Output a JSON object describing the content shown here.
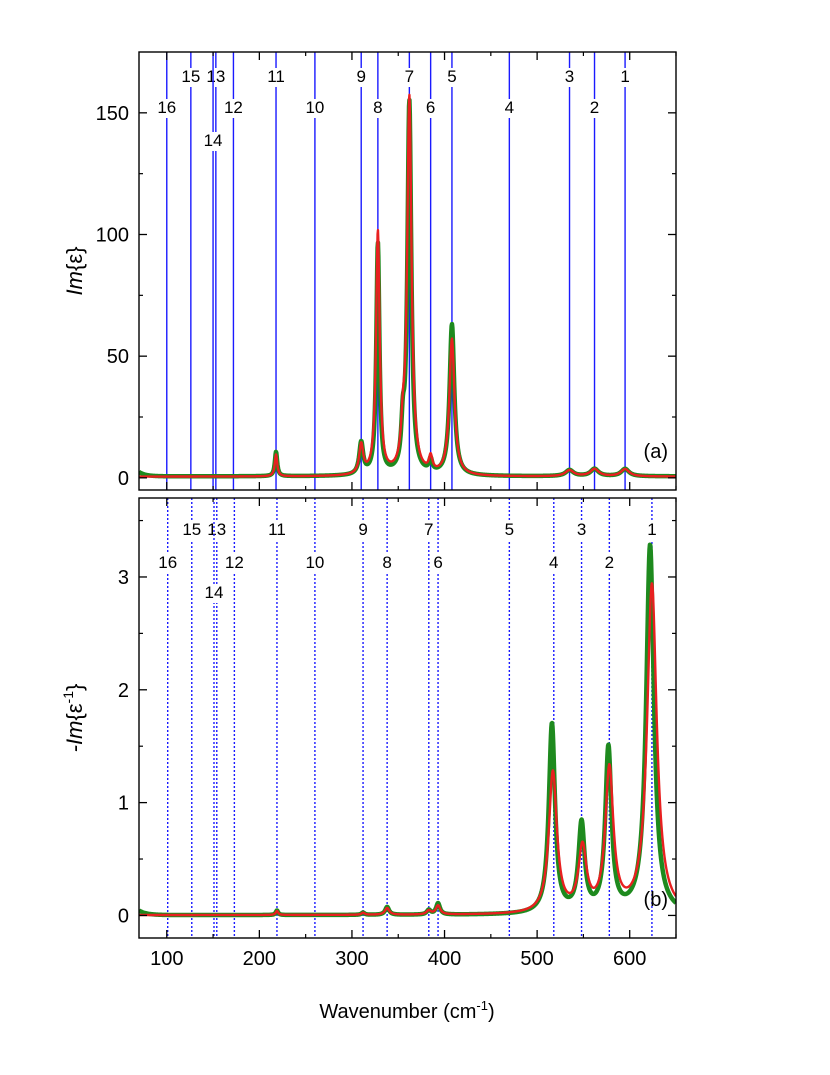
{
  "chart_data": [
    {
      "id": "a",
      "type": "line",
      "panel_label": "(a)",
      "ylabel_prefix": "Im",
      "ylabel_body": "{ε}",
      "xlim": [
        70,
        650
      ],
      "ylim": [
        -5,
        175
      ],
      "yticks": [
        0,
        50,
        100,
        150
      ],
      "yticks_minor": [
        25,
        75,
        125
      ],
      "mode_lines": {
        "style": "solid",
        "color": "#1a1aff",
        "modes": [
          {
            "n": "1",
            "x": 595,
            "row": 0
          },
          {
            "n": "2",
            "x": 562,
            "row": 1
          },
          {
            "n": "3",
            "x": 535,
            "row": 0
          },
          {
            "n": "4",
            "x": 470,
            "row": 1
          },
          {
            "n": "5",
            "x": 408,
            "row": 0
          },
          {
            "n": "6",
            "x": 385,
            "row": 1
          },
          {
            "n": "7",
            "x": 362,
            "row": 0
          },
          {
            "n": "8",
            "x": 328,
            "row": 1
          },
          {
            "n": "9",
            "x": 310,
            "row": 0
          },
          {
            "n": "10",
            "x": 260,
            "row": 1
          },
          {
            "n": "11",
            "x": 218,
            "row": 0
          },
          {
            "n": "12",
            "x": 172,
            "row": 1
          },
          {
            "n": "13",
            "x": 153,
            "row": 0
          },
          {
            "n": "14",
            "x": 150,
            "row": 2
          },
          {
            "n": "15",
            "x": 126,
            "row": 0
          },
          {
            "n": "16",
            "x": 100,
            "row": 1
          }
        ]
      },
      "series": [
        {
          "name": "",
          "color": "#1e8a1e",
          "width": 4.5,
          "baseline": 0.6,
          "edge_rise": {
            "amp": 1.8,
            "x0": 70,
            "decay": 7
          },
          "peaks": [
            {
              "x": 218,
              "amp": 10,
              "w": 1.5
            },
            {
              "x": 310,
              "amp": 13,
              "w": 2.5
            },
            {
              "x": 328,
              "amp": 95,
              "w": 2
            },
            {
              "x": 355,
              "amp": 15,
              "w": 2
            },
            {
              "x": 362,
              "amp": 153,
              "w": 2.5
            },
            {
              "x": 385,
              "amp": 5,
              "w": 2
            },
            {
              "x": 408,
              "amp": 62,
              "w": 3
            },
            {
              "x": 535,
              "amp": 2.5,
              "w": 5
            },
            {
              "x": 562,
              "amp": 3,
              "w": 5
            },
            {
              "x": 595,
              "amp": 3,
              "w": 5
            }
          ]
        },
        {
          "name": "",
          "color": "#e82020",
          "width": 2.4,
          "baseline": 0.5,
          "edge_rise": {
            "amp": 0,
            "x0": 70,
            "decay": 7
          },
          "peaks": [
            {
              "x": 218,
              "amp": 9,
              "w": 1.6
            },
            {
              "x": 310,
              "amp": 12,
              "w": 2.6
            },
            {
              "x": 328,
              "amp": 100,
              "w": 2.3
            },
            {
              "x": 355,
              "amp": 13,
              "w": 2.2
            },
            {
              "x": 362,
              "amp": 155,
              "w": 2.8
            },
            {
              "x": 385,
              "amp": 6,
              "w": 2.2
            },
            {
              "x": 408,
              "amp": 56,
              "w": 3.3
            },
            {
              "x": 535,
              "amp": 2.5,
              "w": 5.5
            },
            {
              "x": 562,
              "amp": 3,
              "w": 5.5
            },
            {
              "x": 595,
              "amp": 3,
              "w": 5.5
            }
          ]
        }
      ]
    },
    {
      "id": "b",
      "type": "line",
      "panel_label": "(b)",
      "ylabel_prefix": "-Im",
      "ylabel_body": "{ε",
      "ylabel_sup": "-1",
      "ylabel_close": "}",
      "xlabel": "Wavenumber (cm",
      "xlabel_sup": "-1",
      "xlabel_close": ")",
      "xlim": [
        70,
        650
      ],
      "ylim": [
        -0.2,
        3.7
      ],
      "yticks": [
        0,
        1,
        2,
        3
      ],
      "yticks_minor": [
        0.5,
        1.5,
        2.5,
        3.5
      ],
      "xticks": [
        100,
        200,
        300,
        400,
        500,
        600
      ],
      "xticks_minor": [
        150,
        250,
        350,
        450,
        550,
        650
      ],
      "mode_lines": {
        "style": "dotted",
        "color": "#1a1aff",
        "modes": [
          {
            "n": "1",
            "x": 624,
            "row": 0
          },
          {
            "n": "2",
            "x": 578,
            "row": 1
          },
          {
            "n": "3",
            "x": 548,
            "row": 0
          },
          {
            "n": "4",
            "x": 518,
            "row": 1
          },
          {
            "n": "5",
            "x": 470,
            "row": 0
          },
          {
            "n": "6",
            "x": 393,
            "row": 1
          },
          {
            "n": "7",
            "x": 383,
            "row": 0
          },
          {
            "n": "8",
            "x": 338,
            "row": 1
          },
          {
            "n": "9",
            "x": 312,
            "row": 0
          },
          {
            "n": "10",
            "x": 260,
            "row": 1
          },
          {
            "n": "11",
            "x": 219,
            "row": 0
          },
          {
            "n": "12",
            "x": 173,
            "row": 1
          },
          {
            "n": "13",
            "x": 154,
            "row": 0
          },
          {
            "n": "14",
            "x": 151,
            "row": 2
          },
          {
            "n": "15",
            "x": 127,
            "row": 0
          },
          {
            "n": "16",
            "x": 101,
            "row": 1
          }
        ]
      },
      "series": [
        {
          "name": "",
          "color": "#1e8a1e",
          "width": 4.5,
          "baseline": 0.003,
          "edge_rise": {
            "amp": 0.04,
            "x0": 70,
            "decay": 8
          },
          "peaks": [
            {
              "x": 219,
              "amp": 0.04,
              "w": 1.5
            },
            {
              "x": 312,
              "amp": 0.02,
              "w": 2
            },
            {
              "x": 338,
              "amp": 0.07,
              "w": 2.5
            },
            {
              "x": 383,
              "amp": 0.04,
              "w": 2.5
            },
            {
              "x": 393,
              "amp": 0.1,
              "w": 2.5
            },
            {
              "x": 516,
              "amp": 1.68,
              "w": 4
            },
            {
              "x": 548,
              "amp": 0.78,
              "w": 4
            },
            {
              "x": 577,
              "amp": 1.45,
              "w": 4
            },
            {
              "x": 622,
              "amp": 3.27,
              "w": 5
            }
          ]
        },
        {
          "name": "",
          "color": "#e82020",
          "width": 2.4,
          "baseline": 0.003,
          "edge_rise": {
            "amp": 0,
            "x0": 70,
            "decay": 8
          },
          "peaks": [
            {
              "x": 219,
              "amp": 0.035,
              "w": 1.6
            },
            {
              "x": 312,
              "amp": 0.018,
              "w": 2.2
            },
            {
              "x": 338,
              "amp": 0.06,
              "w": 2.8
            },
            {
              "x": 383,
              "amp": 0.035,
              "w": 2.8
            },
            {
              "x": 393,
              "amp": 0.08,
              "w": 2.8
            },
            {
              "x": 517,
              "amp": 1.25,
              "w": 5.2
            },
            {
              "x": 549,
              "amp": 0.56,
              "w": 5.2
            },
            {
              "x": 578,
              "amp": 1.26,
              "w": 5.2
            },
            {
              "x": 624,
              "amp": 2.92,
              "w": 6.2
            }
          ]
        }
      ]
    }
  ]
}
